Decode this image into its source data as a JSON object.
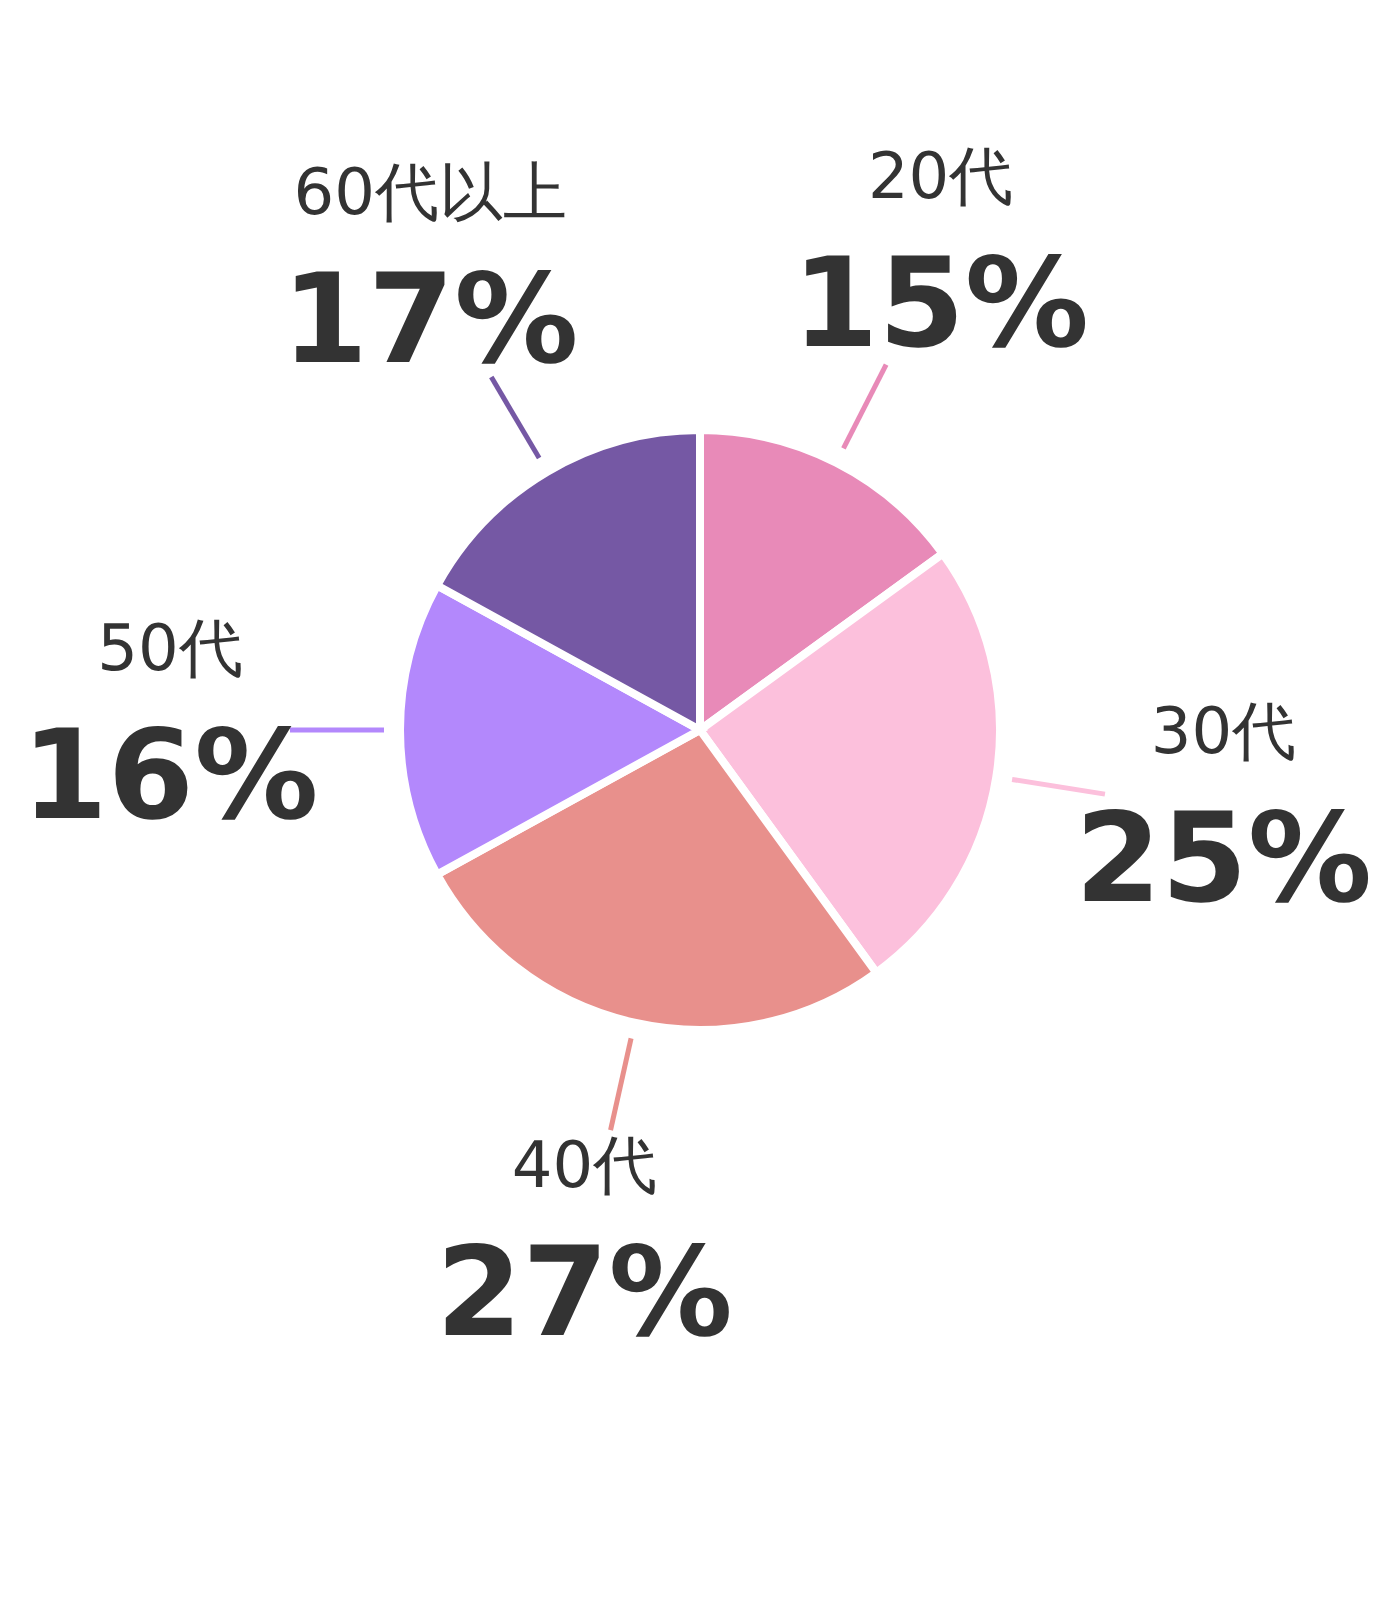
{
  "chart_data": {
    "type": "pie",
    "categories": [
      "20代",
      "30代",
      "40代",
      "50代",
      "60代以上"
    ],
    "values": [
      15,
      25,
      27,
      16,
      17
    ],
    "colors": [
      "#e88ab8",
      "#fcc0dc",
      "#e8908c",
      "#b388fc",
      "#7558a4"
    ],
    "value_labels": [
      "15%",
      "25%",
      "27%",
      "16%",
      "17%"
    ]
  }
}
